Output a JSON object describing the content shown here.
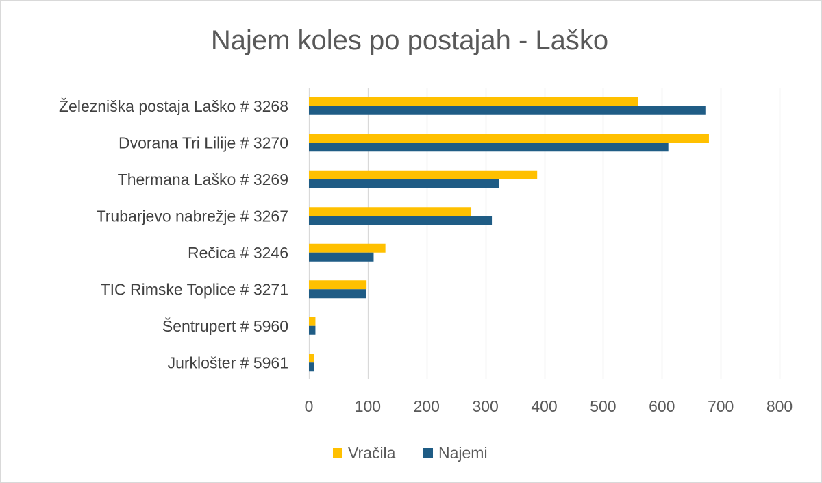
{
  "chart_data": {
    "type": "bar",
    "orientation": "horizontal",
    "title": "Najem koles po postajah - Laško",
    "xlabel": "",
    "ylabel": "",
    "categories": [
      "Železniška postaja Laško  #  3268",
      "Dvorana Tri Lilije  #  3270",
      "Thermana Laško  #  3269",
      "Trubarjevo nabrežje  #  3267",
      "Rečica  #  3246",
      "TIC Rimske Toplice  #  3271",
      "Šentrupert  #  5960",
      "Jurklošter  #  5961"
    ],
    "series": [
      {
        "name": "Vračila",
        "color": "#FFC000",
        "values": [
          560,
          680,
          388,
          276,
          130,
          98,
          11,
          9
        ]
      },
      {
        "name": "Najemi",
        "color": "#1F5C85",
        "values": [
          674,
          611,
          323,
          311,
          110,
          97,
          11,
          9
        ]
      }
    ],
    "xlim": [
      0,
      800
    ],
    "ticks": [
      "0",
      "100",
      "200",
      "300",
      "400",
      "500",
      "600",
      "700",
      "800"
    ],
    "grid": true,
    "legend_position": "bottom"
  }
}
